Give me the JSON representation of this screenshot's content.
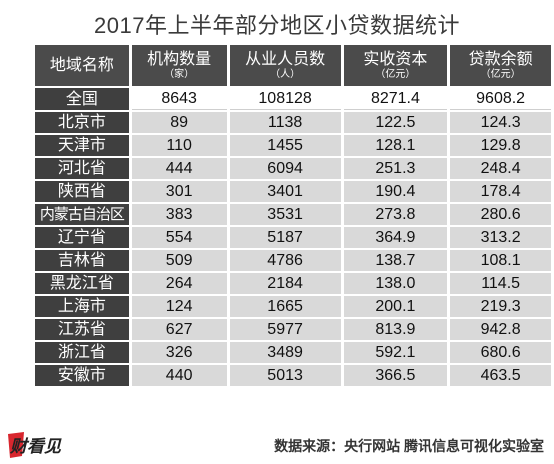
{
  "title": "2017年上半年部分地区小贷数据统计",
  "chart_data": {
    "type": "table",
    "title": "2017年上半年部分地区小贷数据统计",
    "columns": [
      {
        "label": "地域名称",
        "unit": ""
      },
      {
        "label": "机构数量",
        "unit": "（家）"
      },
      {
        "label": "从业人员数",
        "unit": "（人）"
      },
      {
        "label": "实收资本",
        "unit": "（亿元）"
      },
      {
        "label": "贷款余额",
        "unit": "（亿元）"
      }
    ],
    "rows": [
      [
        "全国",
        "8643",
        "108128",
        "8271.4",
        "9608.2"
      ],
      [
        "北京市",
        "89",
        "1138",
        "122.5",
        "124.3"
      ],
      [
        "天津市",
        "110",
        "1455",
        "128.1",
        "129.8"
      ],
      [
        "河北省",
        "444",
        "6094",
        "251.3",
        "248.4"
      ],
      [
        "陕西省",
        "301",
        "3401",
        "190.4",
        "178.4"
      ],
      [
        "内蒙古自治区",
        "383",
        "3531",
        "273.8",
        "280.6"
      ],
      [
        "辽宁省",
        "554",
        "5187",
        "364.9",
        "313.2"
      ],
      [
        "吉林省",
        "509",
        "4786",
        "138.7",
        "108.1"
      ],
      [
        "黑龙江省",
        "264",
        "2184",
        "138.0",
        "114.5"
      ],
      [
        "上海市",
        "124",
        "1665",
        "200.1",
        "219.3"
      ],
      [
        "江苏省",
        "627",
        "5977",
        "813.9",
        "942.8"
      ],
      [
        "浙江省",
        "326",
        "3489",
        "592.1",
        "680.6"
      ],
      [
        "安徽市",
        "440",
        "5013",
        "366.5",
        "463.5"
      ]
    ]
  },
  "source": "数据来源：央行网站   腾讯信息可视化实验室",
  "logo_text": "财看见",
  "colors": {
    "header_bg": "#4b4b4b",
    "row_label_bg": "#3f3f3f",
    "cell_bg": "#d9d9d9",
    "logo_red": "#d8262e"
  }
}
